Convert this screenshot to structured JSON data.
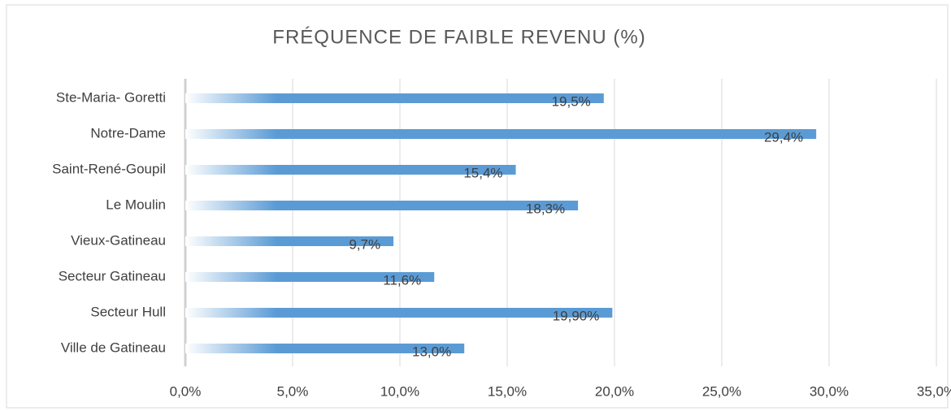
{
  "chart_data": {
    "type": "bar",
    "orientation": "horizontal",
    "title": "FRÉQUENCE DE FAIBLE REVENU (%)",
    "categories": [
      "Ste-Maria- Goretti",
      "Notre-Dame",
      "Saint-René-Goupil",
      "Le  Moulin",
      "Vieux-Gatineau",
      "Secteur Gatineau",
      "Secteur Hull",
      "Ville de Gatineau"
    ],
    "values": [
      19.5,
      29.4,
      15.4,
      18.3,
      9.7,
      11.6,
      19.9,
      13.0
    ],
    "value_labels": [
      "19,5%",
      "29,4%",
      "15,4%",
      "18,3%",
      "9,7%",
      "11,6%",
      "19,90%",
      "13,0%"
    ],
    "color": "#5b9bd5",
    "xlim": [
      0,
      35
    ],
    "xticks": [
      {
        "value": 0,
        "label": "0,0%"
      },
      {
        "value": 5,
        "label": "5,0%"
      },
      {
        "value": 10,
        "label": "10,0%"
      },
      {
        "value": 15,
        "label": "15,0%"
      },
      {
        "value": 20,
        "label": "20,0%"
      },
      {
        "value": 25,
        "label": "25,0%"
      },
      {
        "value": 30,
        "label": "30,0%"
      },
      {
        "value": 35,
        "label": "35,0%"
      }
    ],
    "grid": true
  }
}
